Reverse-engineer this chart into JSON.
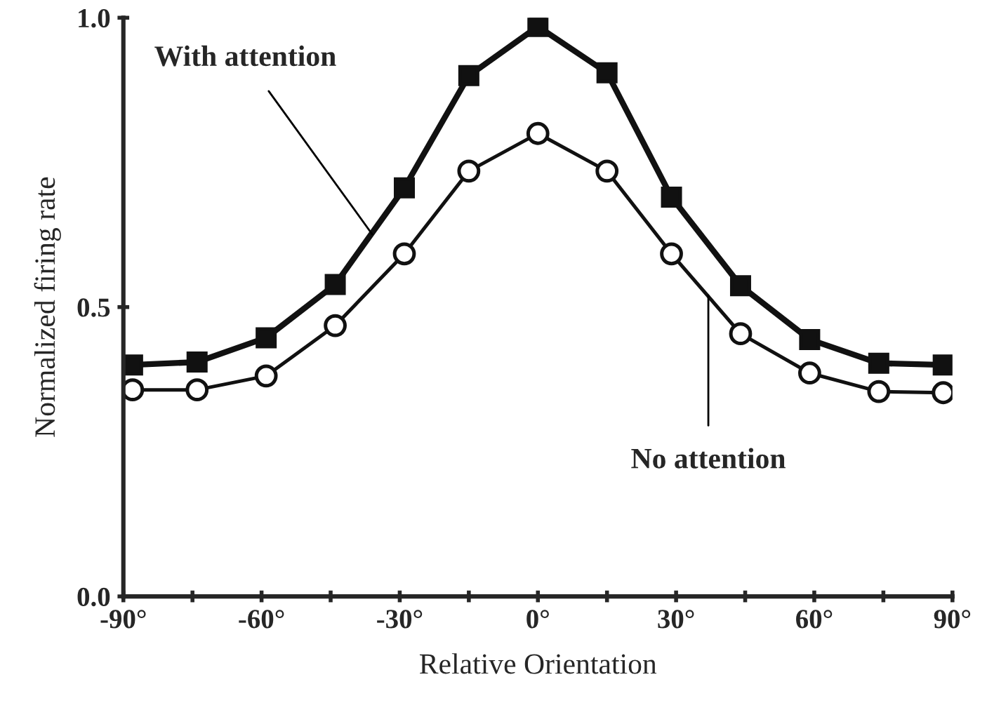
{
  "chart_data": {
    "type": "line",
    "xlabel": "Relative Orientation",
    "ylabel": "Normalized firing rate",
    "x": [
      -88,
      -74,
      -59,
      -44,
      -29,
      -15,
      0,
      15,
      29,
      44,
      59,
      74,
      88
    ],
    "series": [
      {
        "color": "#111111",
        "marker": "square",
        "values": [
          0.4,
          0.405,
          0.447,
          0.539,
          0.706,
          0.9,
          0.985,
          0.905,
          0.69,
          0.537,
          0.444,
          0.403,
          0.4
        ]
      },
      {
        "color": "#111111",
        "marker": "circle",
        "values": [
          0.357,
          0.357,
          0.381,
          0.468,
          0.592,
          0.735,
          0.8,
          0.735,
          0.592,
          0.454,
          0.386,
          0.354,
          0.352
        ]
      }
    ],
    "xlim": [
      -90,
      90
    ],
    "xticks": [
      {
        "value": -90,
        "label": "-90°"
      },
      {
        "value": -75,
        "label": null
      },
      {
        "value": -60,
        "label": "-60°"
      },
      {
        "value": -45,
        "label": null
      },
      {
        "value": -30,
        "label": "-30°"
      },
      {
        "value": -15,
        "label": null
      },
      {
        "value": 0,
        "label": "0°"
      },
      {
        "value": 15,
        "label": null
      },
      {
        "value": 30,
        "label": "30°"
      },
      {
        "value": 45,
        "label": null
      },
      {
        "value": 60,
        "label": "60°"
      },
      {
        "value": 75,
        "label": null
      },
      {
        "value": 90,
        "label": "90°"
      }
    ],
    "ylim": [
      0,
      1
    ],
    "yticks": [
      {
        "value": 0,
        "label": "0.0"
      },
      {
        "value": 0.5,
        "label": "0.5"
      },
      {
        "value": 1,
        "label": "1.0"
      }
    ],
    "annotations": [
      {
        "text": "With attention",
        "x": -36,
        "y": 0.626
      },
      {
        "text": "No attention",
        "x": 37,
        "y": 0.52
      }
    ],
    "grid": false,
    "legend": false,
    "line_style": "solid"
  }
}
